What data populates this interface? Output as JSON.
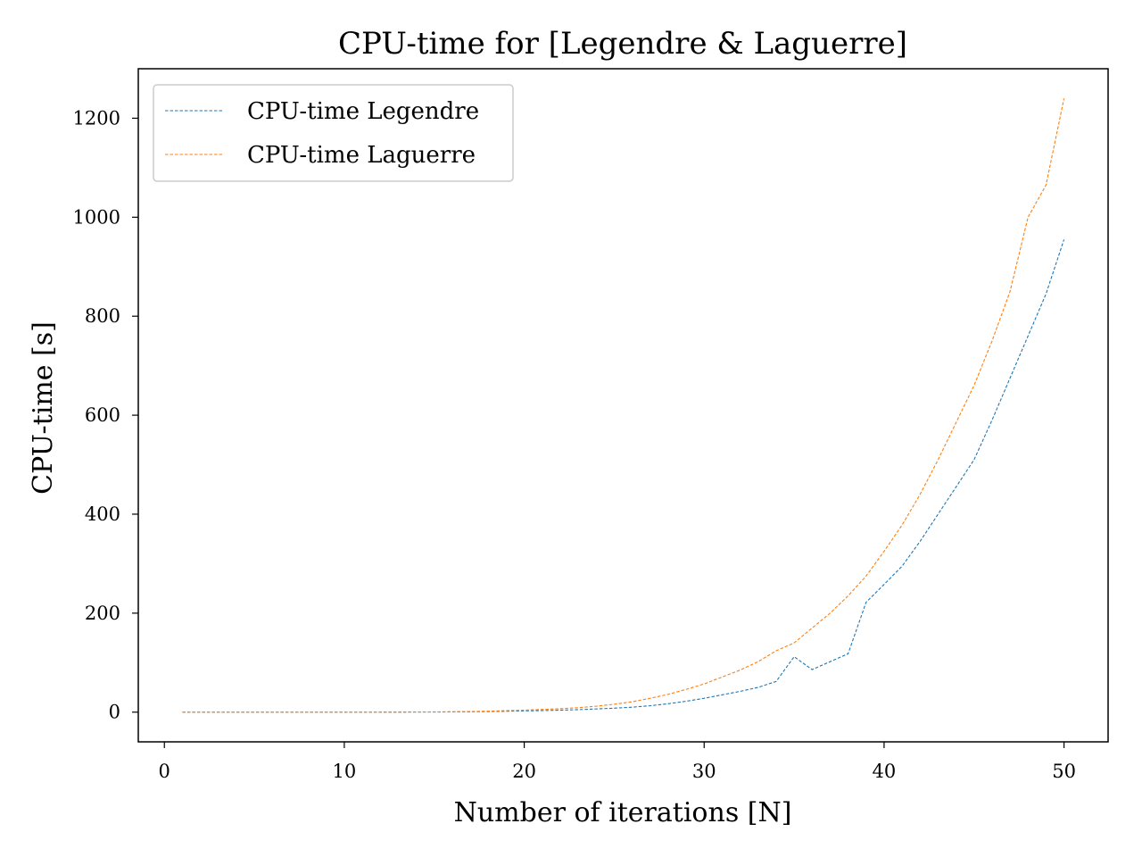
{
  "chart_data": {
    "type": "line",
    "title": "CPU-time for [Legendre & Laguerre]",
    "xlabel": "Number of iterations [N]",
    "ylabel": "CPU-time [s]",
    "xlim": [
      -1.45,
      52.45
    ],
    "ylim": [
      -60,
      1300
    ],
    "xticks": [
      0,
      10,
      20,
      30,
      40,
      50
    ],
    "yticks": [
      0,
      200,
      400,
      600,
      800,
      1000,
      1200
    ],
    "grid": false,
    "legend_position": "upper-left",
    "line_style": "dashed",
    "series": [
      {
        "name": "CPU-time Legendre",
        "color": "#1f77b4",
        "x": [
          1,
          2,
          3,
          4,
          5,
          6,
          7,
          8,
          9,
          10,
          11,
          12,
          13,
          14,
          15,
          16,
          17,
          18,
          19,
          20,
          21,
          22,
          23,
          24,
          25,
          26,
          27,
          28,
          29,
          30,
          31,
          32,
          33,
          34,
          35,
          36,
          37,
          38,
          39,
          40,
          41,
          42,
          43,
          44,
          45,
          46,
          47,
          48,
          49,
          50
        ],
        "y": [
          0,
          0,
          0,
          0,
          0,
          0,
          0,
          0,
          0,
          0,
          0,
          0,
          0.1,
          0.2,
          0.3,
          0.5,
          0.8,
          1.2,
          1.8,
          2.5,
          3.2,
          4,
          5,
          6.5,
          8,
          10,
          13,
          17,
          22,
          28,
          35,
          42,
          50,
          62,
          112,
          86,
          102,
          118,
          222,
          258,
          295,
          345,
          400,
          455,
          510,
          590,
          675,
          760,
          845,
          955
        ]
      },
      {
        "name": "CPU-time Laguerre",
        "color": "#ff7f0e",
        "x": [
          1,
          2,
          3,
          4,
          5,
          6,
          7,
          8,
          9,
          10,
          11,
          12,
          13,
          14,
          15,
          16,
          17,
          18,
          19,
          20,
          21,
          22,
          23,
          24,
          25,
          26,
          27,
          28,
          29,
          30,
          31,
          32,
          33,
          34,
          35,
          36,
          37,
          38,
          39,
          40,
          41,
          42,
          43,
          44,
          45,
          46,
          47,
          48,
          49,
          50
        ],
        "y": [
          0,
          0,
          0,
          0,
          0,
          0,
          0,
          0,
          0,
          0,
          0,
          0,
          0.1,
          0.3,
          0.5,
          0.8,
          1.2,
          2,
          3,
          4,
          5.5,
          7,
          9,
          12,
          16,
          21,
          28,
          36,
          46,
          57,
          71,
          85,
          102,
          124,
          140,
          170,
          200,
          235,
          275,
          325,
          378,
          440,
          510,
          585,
          660,
          750,
          850,
          1000,
          1065,
          1240
        ]
      }
    ]
  }
}
